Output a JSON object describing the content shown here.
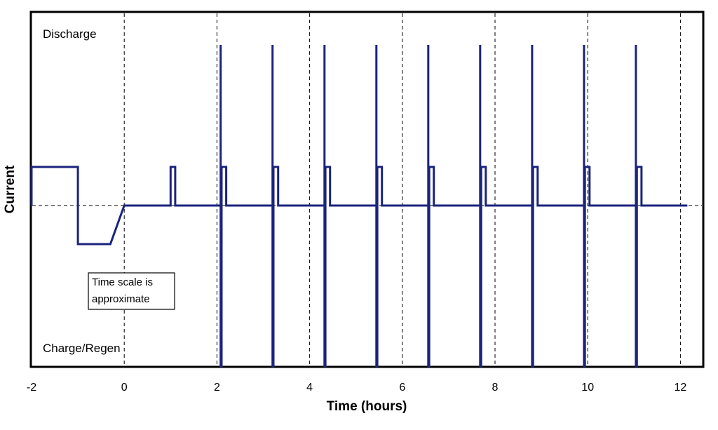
{
  "chart_data": {
    "type": "line",
    "title": "",
    "xlabel": "Time (hours)",
    "ylabel": "Current",
    "xlim": [
      -2,
      12.5
    ],
    "ylim": [
      -2.8,
      3.0
    ],
    "x_ticks": [
      -2,
      0,
      2,
      4,
      6,
      8,
      10,
      12
    ],
    "x_tick_labels": [
      "-2",
      "0",
      "2",
      "4",
      "6",
      "8",
      "10",
      "12"
    ],
    "grid": {
      "vertical": true,
      "style": "dashed",
      "zero_line": true
    },
    "series": [
      {
        "color": "#1a237e",
        "x": [
          -2.0,
          -2.0,
          -1.0,
          -1.0,
          -0.3,
          0.0,
          1.0,
          1.0,
          1.1,
          1.1,
          2.08,
          2.08,
          2.08,
          2.1,
          2.1,
          2.2,
          2.2,
          3.2,
          3.2,
          3.2,
          3.22,
          3.22,
          3.32,
          3.32,
          4.32,
          4.32,
          4.32,
          4.34,
          4.34,
          4.44,
          4.44,
          5.44,
          5.44,
          5.44,
          5.46,
          5.46,
          5.56,
          5.56,
          6.56,
          6.56,
          6.56,
          6.58,
          6.58,
          6.68,
          6.68,
          7.68,
          7.68,
          7.68,
          7.7,
          7.7,
          7.8,
          7.8,
          8.8,
          8.8,
          8.8,
          8.82,
          8.82,
          8.92,
          8.92,
          9.92,
          9.92,
          9.92,
          9.94,
          9.94,
          10.04,
          10.04,
          11.04,
          11.04,
          11.04,
          11.06,
          11.06,
          11.16,
          11.16,
          12.15
        ],
        "y": [
          0.0,
          0.6,
          0.6,
          -0.6,
          -0.6,
          0.0,
          0.0,
          0.6,
          0.6,
          0.0,
          0.0,
          2.5,
          -2.5,
          -2.5,
          0.6,
          0.6,
          0.0,
          0.0,
          2.5,
          -2.5,
          -2.5,
          0.6,
          0.6,
          0.0,
          0.0,
          2.5,
          -2.5,
          -2.5,
          0.6,
          0.6,
          0.0,
          0.0,
          2.5,
          -2.5,
          -2.5,
          0.6,
          0.6,
          0.0,
          0.0,
          2.5,
          -2.5,
          -2.5,
          0.6,
          0.6,
          0.0,
          0.0,
          2.5,
          -2.5,
          -2.5,
          0.6,
          0.6,
          0.0,
          0.0,
          2.5,
          -2.5,
          -2.5,
          0.6,
          0.6,
          0.0,
          0.0,
          2.5,
          -2.5,
          -2.5,
          0.6,
          0.6,
          0.0,
          0.0,
          2.5,
          -2.5,
          -2.5,
          0.6,
          0.6,
          0.0,
          0.0
        ]
      }
    ],
    "annotations": {
      "discharge": "Discharge",
      "charge_regen": "Charge/Regen",
      "note_line1": "Time scale is",
      "note_line2": "approximate"
    }
  }
}
